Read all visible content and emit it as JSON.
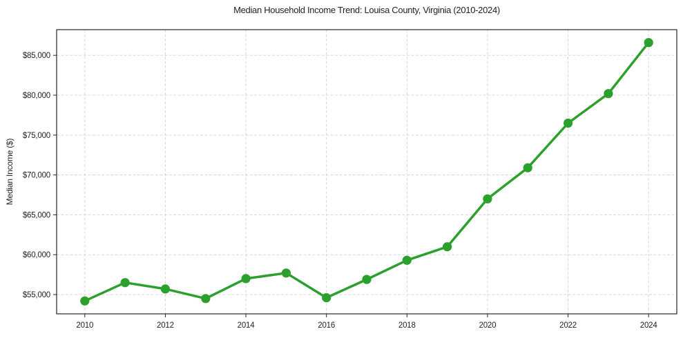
{
  "chart_data": {
    "type": "line",
    "title": "Median Household Income Trend: Louisa County, Virginia (2010-2024)",
    "xlabel": "",
    "ylabel": "Median Income ($)",
    "x": [
      2010,
      2011,
      2012,
      2013,
      2014,
      2015,
      2016,
      2017,
      2018,
      2019,
      2020,
      2021,
      2022,
      2023,
      2024
    ],
    "series": [
      {
        "name": "Median Household Income",
        "values": [
          54200,
          56500,
          55700,
          54500,
          57000,
          57700,
          54600,
          56900,
          59300,
          61000,
          67000,
          70900,
          76500,
          80200,
          86600
        ],
        "color": "#2ca02c",
        "marker": "circle"
      }
    ],
    "xticks": [
      2010,
      2012,
      2014,
      2016,
      2018,
      2020,
      2022,
      2024
    ],
    "xtick_labels": [
      "2010",
      "2012",
      "2014",
      "2016",
      "2018",
      "2020",
      "2022",
      "2024"
    ],
    "yticks": [
      55000,
      60000,
      65000,
      70000,
      75000,
      80000,
      85000
    ],
    "ytick_labels": [
      "$55,000",
      "$60,000",
      "$65,000",
      "$70,000",
      "$75,000",
      "$80,000",
      "$85,000"
    ],
    "xlim": [
      2009.3,
      2024.7
    ],
    "ylim": [
      52580,
      88220
    ],
    "grid": true,
    "grid_style": "dashed",
    "legend": "none"
  },
  "style": {
    "line_color": "#2ca02c",
    "grid_color": "#d8d8d8",
    "axis_color": "#262626",
    "text_color": "#1f1f1f",
    "background": "#ffffff"
  }
}
